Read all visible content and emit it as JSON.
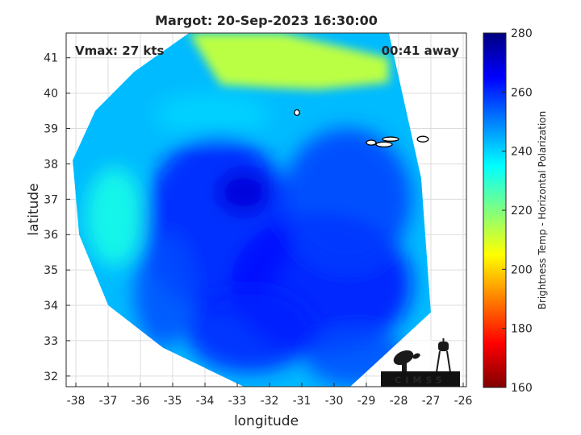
{
  "chart_data": {
    "type": "heatmap",
    "title": "Margot: 20-Sep-2023 16:30:00",
    "xlabel": "longitude",
    "ylabel": "latitude",
    "xlim": [
      -38.3,
      -25.9
    ],
    "ylim": [
      31.7,
      41.7
    ],
    "xticks": [
      -38,
      -37,
      -36,
      -35,
      -34,
      -33,
      -32,
      -31,
      -30,
      -29,
      -28,
      -27,
      -26
    ],
    "yticks": [
      32,
      33,
      34,
      35,
      36,
      37,
      38,
      39,
      40,
      41
    ],
    "grid": true,
    "annotations": {
      "vmax": "Vmax: 27 kts",
      "time_away": "00:41 away"
    },
    "colorbar": {
      "label": "Brightness Temp - Horizontal Polarization",
      "range": [
        160,
        280
      ],
      "ticks": [
        160,
        180,
        200,
        220,
        240,
        260,
        280
      ],
      "colors": [
        "#800000",
        "#ff0000",
        "#ff8000",
        "#ffff00",
        "#80ff80",
        "#00ffff",
        "#0080ff",
        "#0000ff",
        "#000080"
      ]
    },
    "swath": {
      "center_lon": -32.1,
      "center_lat": 36.6,
      "ring_lon": [
        -31.6,
        -34.5,
        -36.2,
        -37.4,
        -38.1,
        -37.9,
        -37.0,
        -35.3,
        -32.8,
        -29.5,
        -27.0,
        -27.3,
        -28.3
      ],
      "ring_lat": [
        41.7,
        41.7,
        40.6,
        39.5,
        38.1,
        36.0,
        34.0,
        32.8,
        31.7,
        31.7,
        33.8,
        37.6,
        41.7
      ],
      "wedge_lon": [
        -34.5,
        -31.6,
        -28.3,
        -28.3,
        -30.5,
        -33.5
      ],
      "wedge_lat": [
        41.7,
        41.7,
        41.0,
        40.3,
        40.1,
        40.2
      ],
      "wedge_tb": 213,
      "base_tb": 243,
      "features": [
        {
          "lon": -33.6,
          "lat": 36.3,
          "rx": 2.3,
          "ry": 2.5,
          "tb": 262
        },
        {
          "lon": -30.4,
          "lat": 34.6,
          "rx": 2.8,
          "ry": 2.0,
          "tb": 264
        },
        {
          "lon": -29.6,
          "lat": 37.0,
          "rx": 2.0,
          "ry": 2.0,
          "tb": 258
        },
        {
          "lon": -32.6,
          "lat": 33.3,
          "rx": 2.0,
          "ry": 1.2,
          "tb": 261
        },
        {
          "lon": -32.8,
          "lat": 37.2,
          "rx": 0.8,
          "ry": 0.6,
          "tb": 270
        },
        {
          "lon": -35.3,
          "lat": 34.4,
          "rx": 0.9,
          "ry": 1.6,
          "tb": 256
        },
        {
          "lon": -36.8,
          "lat": 36.5,
          "rx": 0.9,
          "ry": 1.4,
          "tb": 232
        },
        {
          "lon": -33.8,
          "lat": 39.4,
          "rx": 1.8,
          "ry": 0.6,
          "tb": 240
        },
        {
          "lon": -29.3,
          "lat": 32.5,
          "rx": 1.6,
          "ry": 0.8,
          "tb": 256
        }
      ],
      "islands": [
        {
          "lon": -31.15,
          "lat": 39.45,
          "rx": 0.08,
          "ry": 0.08
        },
        {
          "lon": -28.85,
          "lat": 38.6,
          "rx": 0.15,
          "ry": 0.07
        },
        {
          "lon": -28.45,
          "lat": 38.55,
          "rx": 0.25,
          "ry": 0.07
        },
        {
          "lon": -28.25,
          "lat": 38.7,
          "rx": 0.25,
          "ry": 0.06
        },
        {
          "lon": -27.25,
          "lat": 38.7,
          "rx": 0.17,
          "ry": 0.08
        }
      ]
    }
  },
  "logo": {
    "text": "CIMSS"
  }
}
